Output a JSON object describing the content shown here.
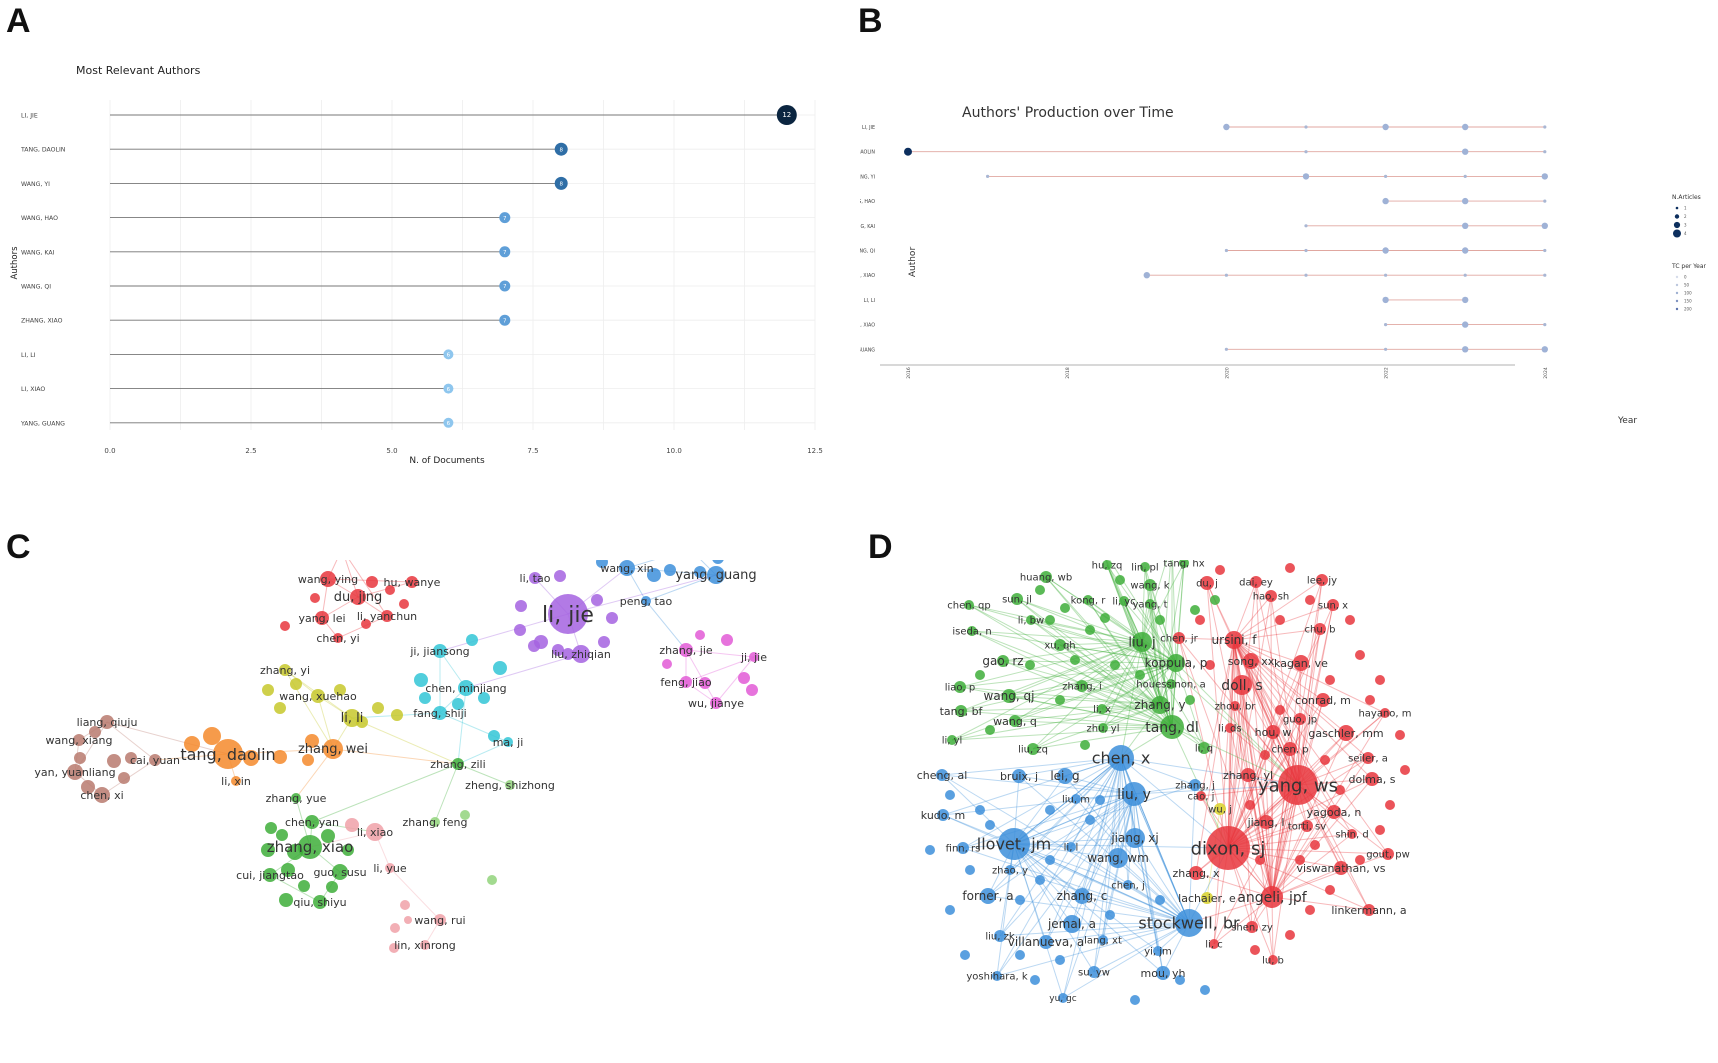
{
  "panels": {
    "a": "A",
    "b": "B",
    "c": "C",
    "d": "D"
  },
  "chart_data": [
    {
      "type": "lollipop",
      "panel": "A",
      "title": "Most Relevant Authors",
      "xlabel": "N. of Documents",
      "ylabel": "Authors",
      "xlim": [
        0,
        12.5
      ],
      "xticks": [
        "0.0",
        "2.5",
        "5.0",
        "7.5",
        "10.0",
        "12.5"
      ],
      "authors": [
        "LI, JIE",
        "TANG, DAOLIN",
        "WANG, YI",
        "WANG, HAO",
        "WANG, KAI",
        "WANG, QI",
        "ZHANG, XIAO",
        "LI, LI",
        "LI, XIAO",
        "YANG, GUANG"
      ],
      "values": [
        12,
        8,
        8,
        7,
        7,
        7,
        7,
        6,
        6,
        6
      ],
      "colors": {
        "max": "#0b2540",
        "mid": "#2f6ea6",
        "low": "#5f9fd8",
        "min": "#8ec6ee"
      }
    },
    {
      "type": "timeline",
      "panel": "B",
      "title": "Authors' Production over Time",
      "xlabel": "Year",
      "ylabel": "Author",
      "years": [
        "2016",
        "2018",
        "2020",
        "2022",
        "2024"
      ],
      "authors": [
        "LI, JIE",
        "TANG, DAOLIN",
        "WANG, YI",
        "WANG, HAO",
        "WANG, KAI",
        "WANG, QI",
        "ZHANG, XIAO",
        "LI, LI",
        "LI, XIAO",
        "YANG, GUANG"
      ],
      "series": [
        {
          "author": "LI, JIE",
          "points": [
            [
              2020,
              2,
              1
            ],
            [
              2021,
              1,
              0
            ],
            [
              2022,
              2,
              1
            ],
            [
              2023,
              2,
              1
            ],
            [
              2024,
              1,
              0
            ]
          ]
        },
        {
          "author": "TANG, DAOLIN",
          "points": [
            [
              2016,
              3,
              4
            ],
            [
              2021,
              1,
              0
            ],
            [
              2023,
              2,
              1
            ],
            [
              2024,
              1,
              0
            ]
          ]
        },
        {
          "author": "WANG, YI",
          "points": [
            [
              2017,
              1,
              0
            ],
            [
              2021,
              2,
              1
            ],
            [
              2022,
              1,
              0
            ],
            [
              2023,
              1,
              0
            ],
            [
              2024,
              2,
              1
            ]
          ]
        },
        {
          "author": "WANG, HAO",
          "points": [
            [
              2022,
              2,
              1
            ],
            [
              2023,
              2,
              1
            ],
            [
              2024,
              1,
              0
            ]
          ]
        },
        {
          "author": "WANG, KAI",
          "points": [
            [
              2021,
              1,
              0
            ],
            [
              2023,
              2,
              1
            ],
            [
              2024,
              2,
              1
            ]
          ]
        },
        {
          "author": "WANG, QI",
          "points": [
            [
              2020,
              1,
              0
            ],
            [
              2021,
              1,
              0
            ],
            [
              2022,
              2,
              1
            ],
            [
              2023,
              2,
              1
            ],
            [
              2024,
              1,
              0
            ]
          ]
        },
        {
          "author": "ZHANG, XIAO",
          "points": [
            [
              2019,
              2,
              1
            ],
            [
              2020,
              1,
              0
            ],
            [
              2021,
              1,
              0
            ],
            [
              2022,
              1,
              0
            ],
            [
              2023,
              1,
              0
            ],
            [
              2024,
              1,
              0
            ]
          ]
        },
        {
          "author": "LI, LI",
          "points": [
            [
              2022,
              2,
              1
            ],
            [
              2023,
              2,
              1
            ]
          ]
        },
        {
          "author": "LI, XIAO",
          "points": [
            [
              2022,
              1,
              0
            ],
            [
              2023,
              2,
              1
            ],
            [
              2024,
              1,
              0
            ]
          ]
        },
        {
          "author": "YANG, GUANG",
          "points": [
            [
              2020,
              1,
              0
            ],
            [
              2022,
              1,
              0
            ],
            [
              2023,
              2,
              1
            ],
            [
              2024,
              2,
              1
            ]
          ]
        }
      ],
      "legend": {
        "articles_title": "N.Articles",
        "articles_values": [
          "1",
          "2",
          "3",
          "4"
        ],
        "tc_title": "TC per Year",
        "tc_values": [
          "0",
          "50",
          "100",
          "150",
          "200"
        ]
      }
    }
  ],
  "network_c": {
    "clusters": {
      "red": "#e8363d",
      "purple": "#a463e0",
      "blue": "#3d8fdb",
      "magenta": "#e25ad6",
      "cyan": "#33c6d6",
      "yellow": "#c7c82c",
      "orange": "#f48a2b",
      "brown": "#b97a6f",
      "green": "#3eae3a",
      "pink": "#f0a1a8",
      "lightgreen": "#92d37b"
    },
    "labels": [
      "ren, xueying",
      "wang, ying",
      "hu, wanye",
      "du, jing",
      "yang, lei",
      "li, yanchun",
      "chen, yi",
      "li, tao",
      "li, jie",
      "liu, zhiqian",
      "wang, xin",
      "hou, chun-yu",
      "yang, guang",
      "peng, tao",
      "zhang, jie",
      "ji, jie",
      "feng, jiao",
      "wu, jianye",
      "ji, jiansong",
      "chen, minjiang",
      "fang, shiji",
      "zhang, yi",
      "wang, xuehao",
      "li, li",
      "liang, qiuju",
      "wang, xiang",
      "tang, daolin",
      "cai, yuan",
      "zhang, wei",
      "yan, yuanliang",
      "chen, xi",
      "li, xin",
      "ma, ji",
      "zhang, zili",
      "zheng, shizhong",
      "zhang, yue",
      "chen, yan",
      "li, xiao",
      "zhang, feng",
      "zhang, xiao",
      "li, yue",
      "cui, jiangtao",
      "guo, susu",
      "qiu, shiyu",
      "wang, rui",
      "lin, xinrong"
    ]
  },
  "network_d": {
    "clusters": {
      "red": "#e8363d",
      "green": "#3eae3a",
      "blue": "#3d8fdb",
      "yellow": "#d8d12a"
    },
    "labels": [
      "ren, xy",
      "shang, yx",
      "hu, zq",
      "lin, pl",
      "tang, hx",
      "huang, wb",
      "wang, k",
      "dai, ey",
      "lee, jy",
      "sun, jl",
      "kong, r",
      "li, yc",
      "yang, t",
      "du, j",
      "hao, sh",
      "chen, qp",
      "sun, x",
      "li, bw",
      "chu, b",
      "iseda, n",
      "xu, qh",
      "liu, j",
      "chen, jr",
      "ursini, f",
      "gao, rz",
      "koppula, p",
      "song, xx",
      "kagan, ve",
      "liao, p",
      "zhang, i",
      "houessinon, a",
      "doll, s",
      "wang, qj",
      "zhang, y",
      "conrad, m",
      "tang, bf",
      "li, x",
      "zhou, br",
      "hayano, m",
      "wang, q",
      "zhu, yl",
      "tang, dl",
      "guo, jp",
      "li, yl",
      "li, ds",
      "hou, w",
      "gaschler, mm",
      "liu, zq",
      "li, q",
      "chen, p",
      "chen, x",
      "seiler, a",
      "cheng, al",
      "bruix, j",
      "lei, g",
      "zhang, yl",
      "zhang, j",
      "yang, ws",
      "dolma, s",
      "liu, m",
      "liu, y",
      "cao, j",
      "kudo, m",
      "wu, j",
      "yagoda, n",
      "jiang, l",
      "torti, sv",
      "finn, rs",
      "llovet, jm",
      "jiang, xj",
      "dixon, sj",
      "shin, d",
      "li, l",
      "wang, wm",
      "gout, pw",
      "zhao, y",
      "zhang, x",
      "viswanathan, vs",
      "chen, j",
      "forner, a",
      "zhang, c",
      "lachaier, e",
      "angeli, jpf",
      "linkermann, a",
      "jemal, a",
      "stockwell, br",
      "liu, zk",
      "shen, zy",
      "villanueva, a",
      "lang, xt",
      "li, c",
      "yi, jm",
      "lu, b",
      "yoshihara, k",
      "su, yw",
      "mou, yh",
      "yu, gc"
    ]
  }
}
